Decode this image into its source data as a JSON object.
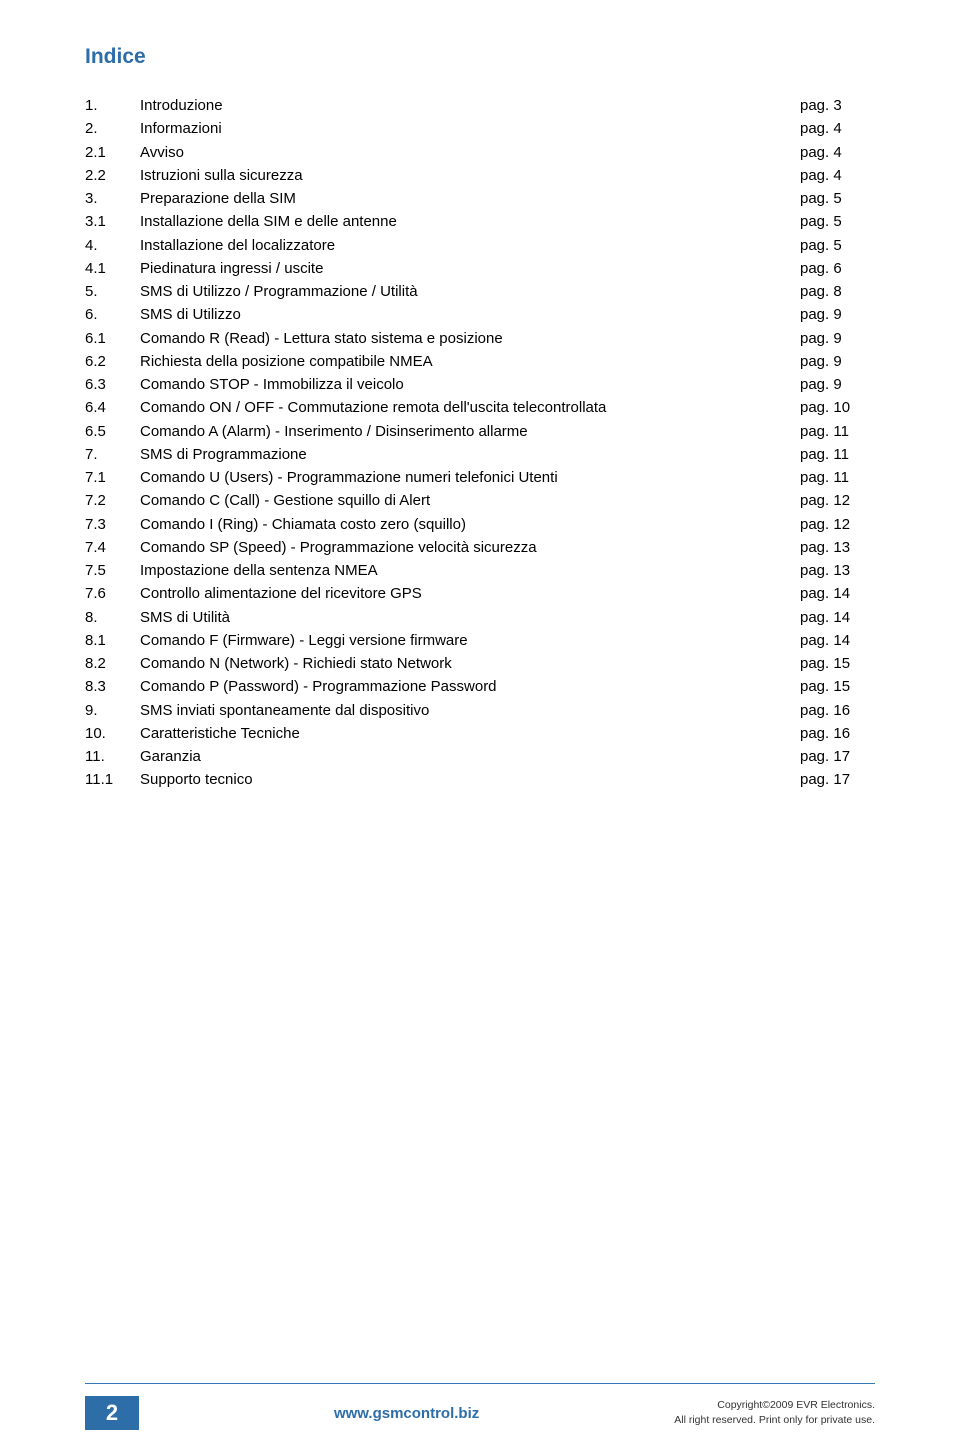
{
  "title": "Indice",
  "toc": [
    {
      "num": "1.",
      "label": "Introduzione",
      "page": "pag. 3"
    },
    {
      "num": "2.",
      "label": "Informazioni",
      "page": "pag. 4"
    },
    {
      "num": "2.1",
      "label": "Avviso",
      "page": "pag. 4"
    },
    {
      "num": "2.2",
      "label": "Istruzioni sulla sicurezza",
      "page": "pag. 4"
    },
    {
      "num": "3.",
      "label": "Preparazione della SIM",
      "page": "pag. 5"
    },
    {
      "num": "3.1",
      "label": "Installazione della SIM e delle antenne",
      "page": "pag. 5"
    },
    {
      "num": "4.",
      "label": "Installazione del localizzatore",
      "page": "pag. 5"
    },
    {
      "num": "4.1",
      "label": "Piedinatura ingressi / uscite",
      "page": "pag. 6"
    },
    {
      "num": "5.",
      "label": "SMS di Utilizzo / Programmazione / Utilità",
      "page": "pag. 8"
    },
    {
      "num": "6.",
      "label": "SMS di Utilizzo",
      "page": "pag. 9"
    },
    {
      "num": "6.1",
      "label": "Comando R (Read) - Lettura stato sistema e posizione",
      "page": "pag. 9"
    },
    {
      "num": "6.2",
      "label": "Richiesta della posizione compatibile NMEA",
      "page": "pag. 9"
    },
    {
      "num": "6.3",
      "label": "Comando STOP - Immobilizza il veicolo",
      "page": "pag. 9"
    },
    {
      "num": "6.4",
      "label": "Comando ON / OFF - Commutazione remota dell'uscita telecontrollata",
      "page": "pag. 10"
    },
    {
      "num": "6.5",
      "label": "Comando A (Alarm) - Inserimento / Disinserimento allarme",
      "page": "pag. 11"
    },
    {
      "num": "7.",
      "label": "SMS di Programmazione",
      "page": "pag. 11"
    },
    {
      "num": "7.1",
      "label": "Comando U (Users) - Programmazione numeri telefonici Utenti",
      "page": "pag. 11"
    },
    {
      "num": "7.2",
      "label": "Comando C (Call) - Gestione squillo di Alert",
      "page": "pag. 12"
    },
    {
      "num": "7.3",
      "label": "Comando I (Ring) - Chiamata costo zero (squillo)",
      "page": "pag. 12"
    },
    {
      "num": "7.4",
      "label": "Comando SP (Speed) - Programmazione velocità sicurezza",
      "page": "pag. 13"
    },
    {
      "num": "7.5",
      "label": "Impostazione della sentenza NMEA",
      "page": "pag. 13"
    },
    {
      "num": "7.6",
      "label": "Controllo alimentazione del ricevitore GPS",
      "page": "pag. 14"
    },
    {
      "num": "8.",
      "label": "SMS di Utilità",
      "page": "pag. 14"
    },
    {
      "num": "8.1",
      "label": "Comando F (Firmware) - Leggi versione firmware",
      "page": "pag. 14"
    },
    {
      "num": "8.2",
      "label": "Comando N (Network) - Richiedi stato Network",
      "page": "pag. 15"
    },
    {
      "num": "8.3",
      "label": "Comando P (Password) - Programmazione Password",
      "page": "pag. 15"
    },
    {
      "num": "9.",
      "label": "SMS inviati spontaneamente dal dispositivo",
      "page": "pag. 16"
    },
    {
      "num": "10.",
      "label": "Caratteristiche Tecniche",
      "page": "pag. 16"
    },
    {
      "num": "11.",
      "label": "Garanzia",
      "page": "pag. 17"
    },
    {
      "num": "11.1",
      "label": "Supporto tecnico",
      "page": "pag. 17"
    }
  ],
  "footer": {
    "pageNumber": "2",
    "url": "www.gsmcontrol.biz",
    "copyright1": "Copyright©2009 EVR Electronics.",
    "copyright2": "All right reserved. Print only for private use."
  },
  "colors": {
    "primary": "#2d6da8",
    "text": "#000000",
    "background": "#ffffff"
  }
}
